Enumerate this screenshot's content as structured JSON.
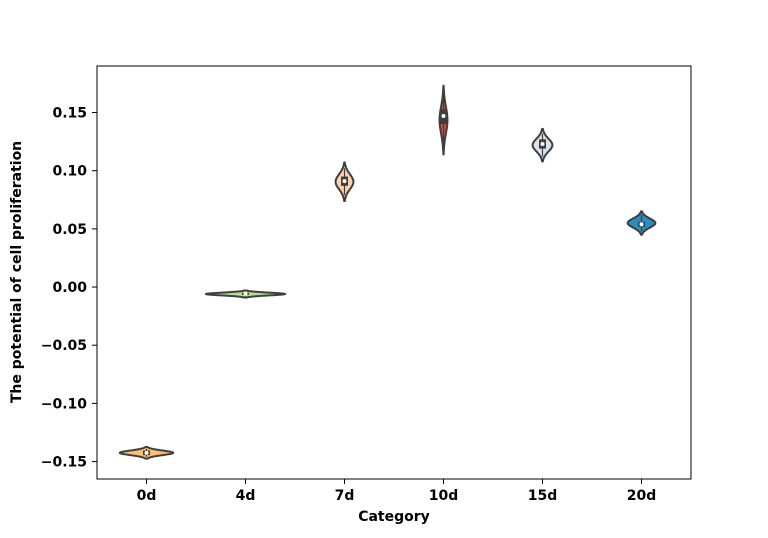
{
  "chart_data": {
    "type": "violin",
    "xlabel": "Category",
    "ylabel": "The potential of cell proliferation",
    "ylim": [
      -0.165,
      0.19
    ],
    "yticks": [
      0.15,
      0.1,
      0.05,
      0.0,
      -0.05,
      -0.1,
      -0.15
    ],
    "ytick_labels": [
      "0.15",
      "0.10",
      "0.05",
      "0.00",
      "−0.05",
      "−0.10",
      "−0.15"
    ],
    "grid": false,
    "categories": [
      "0d",
      "4d",
      "7d",
      "10d",
      "15d",
      "20d"
    ],
    "series": [
      {
        "category": "0d",
        "color": "#fdbf6f",
        "min": -0.1475,
        "max": -0.1375,
        "q1": -0.1445,
        "median": -0.1425,
        "q3": -0.1405,
        "max_half_width": 0.27
      },
      {
        "category": "4d",
        "color": "#b2df8a",
        "min": -0.009,
        "max": -0.003,
        "q1": -0.0068,
        "median": -0.0058,
        "q3": -0.0048,
        "max_half_width": 0.4
      },
      {
        "category": "7d",
        "color": "#fdd0b0",
        "min": 0.074,
        "max": 0.107,
        "q1": 0.087,
        "median": 0.091,
        "q3": 0.095,
        "max_half_width": 0.09
      },
      {
        "category": "10d",
        "color": "#e34a33",
        "min": 0.114,
        "max": 0.173,
        "q1": 0.14,
        "median": 0.147,
        "q3": 0.153,
        "max_half_width": 0.04
      },
      {
        "category": "15d",
        "color": "#d6e4f0",
        "min": 0.108,
        "max": 0.136,
        "q1": 0.119,
        "median": 0.123,
        "q3": 0.127,
        "max_half_width": 0.1
      },
      {
        "category": "20d",
        "color": "#2b8cbe",
        "min": 0.045,
        "max": 0.065,
        "q1": 0.052,
        "median": 0.054,
        "q3": 0.056,
        "max_half_width": 0.14
      }
    ]
  }
}
